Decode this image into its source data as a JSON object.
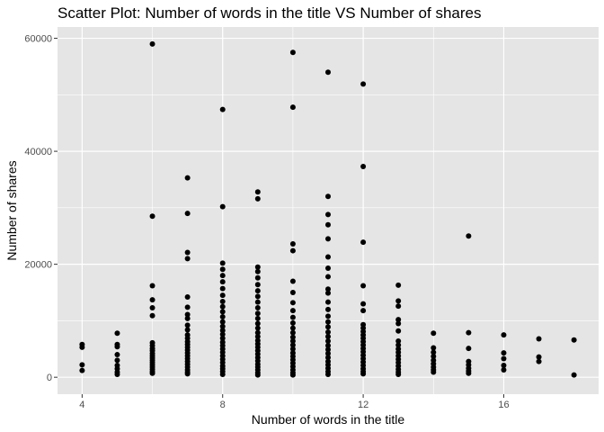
{
  "chart_data": {
    "type": "scatter",
    "title": "Scatter Plot: Number of words in the title VS Number of shares",
    "xlabel": "Number of words in the title",
    "ylabel": "Number of shares",
    "xlim": [
      3.3,
      18.7
    ],
    "ylim": [
      -3000,
      62000
    ],
    "x_ticks": [
      4,
      8,
      12,
      16
    ],
    "x_tick_labels": [
      "4",
      "8",
      "12",
      "16"
    ],
    "y_ticks": [
      0,
      20000,
      40000,
      60000
    ],
    "y_tick_labels": [
      "0",
      "20000",
      "40000",
      "60000"
    ],
    "grid": true,
    "panel_background": "#e5e5e5",
    "grid_color": "#ffffff",
    "point_color": "#000000",
    "points": [
      {
        "x": 4,
        "y": 5800
      },
      {
        "x": 4,
        "y": 5300
      },
      {
        "x": 4,
        "y": 2200
      },
      {
        "x": 4,
        "y": 1200
      },
      {
        "x": 5,
        "y": 7800
      },
      {
        "x": 5,
        "y": 5800
      },
      {
        "x": 5,
        "y": 5400
      },
      {
        "x": 5,
        "y": 4000
      },
      {
        "x": 5,
        "y": 3000
      },
      {
        "x": 5,
        "y": 2100
      },
      {
        "x": 5,
        "y": 1500
      },
      {
        "x": 5,
        "y": 900
      },
      {
        "x": 5,
        "y": 500
      },
      {
        "x": 6,
        "y": 59000
      },
      {
        "x": 6,
        "y": 28500
      },
      {
        "x": 6,
        "y": 16200
      },
      {
        "x": 6,
        "y": 13700
      },
      {
        "x": 6,
        "y": 12300
      },
      {
        "x": 6,
        "y": 10900
      },
      {
        "x": 6,
        "y": 6100
      },
      {
        "x": 6,
        "y": 5600
      },
      {
        "x": 6,
        "y": 5100
      },
      {
        "x": 6,
        "y": 4700
      },
      {
        "x": 6,
        "y": 4200
      },
      {
        "x": 6,
        "y": 3800
      },
      {
        "x": 6,
        "y": 3400
      },
      {
        "x": 6,
        "y": 3000
      },
      {
        "x": 6,
        "y": 2600
      },
      {
        "x": 6,
        "y": 2200
      },
      {
        "x": 6,
        "y": 1800
      },
      {
        "x": 6,
        "y": 1400
      },
      {
        "x": 6,
        "y": 1000
      },
      {
        "x": 6,
        "y": 700
      },
      {
        "x": 7,
        "y": 35300
      },
      {
        "x": 7,
        "y": 29000
      },
      {
        "x": 7,
        "y": 22100
      },
      {
        "x": 7,
        "y": 21000
      },
      {
        "x": 7,
        "y": 14200
      },
      {
        "x": 7,
        "y": 12400
      },
      {
        "x": 7,
        "y": 11100
      },
      {
        "x": 7,
        "y": 10400
      },
      {
        "x": 7,
        "y": 9200
      },
      {
        "x": 7,
        "y": 8400
      },
      {
        "x": 7,
        "y": 7500
      },
      {
        "x": 7,
        "y": 6900
      },
      {
        "x": 7,
        "y": 6300
      },
      {
        "x": 7,
        "y": 5800
      },
      {
        "x": 7,
        "y": 5300
      },
      {
        "x": 7,
        "y": 4800
      },
      {
        "x": 7,
        "y": 4300
      },
      {
        "x": 7,
        "y": 3800
      },
      {
        "x": 7,
        "y": 3300
      },
      {
        "x": 7,
        "y": 2800
      },
      {
        "x": 7,
        "y": 2300
      },
      {
        "x": 7,
        "y": 1800
      },
      {
        "x": 7,
        "y": 1300
      },
      {
        "x": 7,
        "y": 900
      },
      {
        "x": 7,
        "y": 600
      },
      {
        "x": 8,
        "y": 47400
      },
      {
        "x": 8,
        "y": 30200
      },
      {
        "x": 8,
        "y": 20200
      },
      {
        "x": 8,
        "y": 19100
      },
      {
        "x": 8,
        "y": 18000
      },
      {
        "x": 8,
        "y": 16900
      },
      {
        "x": 8,
        "y": 15700
      },
      {
        "x": 8,
        "y": 14500
      },
      {
        "x": 8,
        "y": 13400
      },
      {
        "x": 8,
        "y": 12500
      },
      {
        "x": 8,
        "y": 11600
      },
      {
        "x": 8,
        "y": 10700
      },
      {
        "x": 8,
        "y": 9800
      },
      {
        "x": 8,
        "y": 9000
      },
      {
        "x": 8,
        "y": 8300
      },
      {
        "x": 8,
        "y": 7600
      },
      {
        "x": 8,
        "y": 6900
      },
      {
        "x": 8,
        "y": 6200
      },
      {
        "x": 8,
        "y": 5600
      },
      {
        "x": 8,
        "y": 5000
      },
      {
        "x": 8,
        "y": 4400
      },
      {
        "x": 8,
        "y": 3800
      },
      {
        "x": 8,
        "y": 3200
      },
      {
        "x": 8,
        "y": 2600
      },
      {
        "x": 8,
        "y": 2000
      },
      {
        "x": 8,
        "y": 1500
      },
      {
        "x": 8,
        "y": 1000
      },
      {
        "x": 8,
        "y": 500
      },
      {
        "x": 9,
        "y": 32800
      },
      {
        "x": 9,
        "y": 31600
      },
      {
        "x": 9,
        "y": 19500
      },
      {
        "x": 9,
        "y": 18700
      },
      {
        "x": 9,
        "y": 17600
      },
      {
        "x": 9,
        "y": 16400
      },
      {
        "x": 9,
        "y": 15300
      },
      {
        "x": 9,
        "y": 14300
      },
      {
        "x": 9,
        "y": 13300
      },
      {
        "x": 9,
        "y": 12300
      },
      {
        "x": 9,
        "y": 11300
      },
      {
        "x": 9,
        "y": 10400
      },
      {
        "x": 9,
        "y": 9500
      },
      {
        "x": 9,
        "y": 8700
      },
      {
        "x": 9,
        "y": 7900
      },
      {
        "x": 9,
        "y": 7200
      },
      {
        "x": 9,
        "y": 6500
      },
      {
        "x": 9,
        "y": 5900
      },
      {
        "x": 9,
        "y": 5300
      },
      {
        "x": 9,
        "y": 4700
      },
      {
        "x": 9,
        "y": 4100
      },
      {
        "x": 9,
        "y": 3500
      },
      {
        "x": 9,
        "y": 2900
      },
      {
        "x": 9,
        "y": 2300
      },
      {
        "x": 9,
        "y": 1800
      },
      {
        "x": 9,
        "y": 1300
      },
      {
        "x": 9,
        "y": 800
      },
      {
        "x": 9,
        "y": 400
      },
      {
        "x": 10,
        "y": 57500
      },
      {
        "x": 10,
        "y": 47800
      },
      {
        "x": 10,
        "y": 23600
      },
      {
        "x": 10,
        "y": 22400
      },
      {
        "x": 10,
        "y": 17000
      },
      {
        "x": 10,
        "y": 15000
      },
      {
        "x": 10,
        "y": 13200
      },
      {
        "x": 10,
        "y": 11800
      },
      {
        "x": 10,
        "y": 10600
      },
      {
        "x": 10,
        "y": 9600
      },
      {
        "x": 10,
        "y": 8700
      },
      {
        "x": 10,
        "y": 7900
      },
      {
        "x": 10,
        "y": 7100
      },
      {
        "x": 10,
        "y": 6400
      },
      {
        "x": 10,
        "y": 5700
      },
      {
        "x": 10,
        "y": 5000
      },
      {
        "x": 10,
        "y": 4300
      },
      {
        "x": 10,
        "y": 3700
      },
      {
        "x": 10,
        "y": 3100
      },
      {
        "x": 10,
        "y": 2500
      },
      {
        "x": 10,
        "y": 1900
      },
      {
        "x": 10,
        "y": 1300
      },
      {
        "x": 10,
        "y": 800
      },
      {
        "x": 10,
        "y": 400
      },
      {
        "x": 11,
        "y": 54000
      },
      {
        "x": 11,
        "y": 32000
      },
      {
        "x": 11,
        "y": 28800
      },
      {
        "x": 11,
        "y": 27000
      },
      {
        "x": 11,
        "y": 24500
      },
      {
        "x": 11,
        "y": 21300
      },
      {
        "x": 11,
        "y": 19300
      },
      {
        "x": 11,
        "y": 17800
      },
      {
        "x": 11,
        "y": 15600
      },
      {
        "x": 11,
        "y": 14900
      },
      {
        "x": 11,
        "y": 13300
      },
      {
        "x": 11,
        "y": 12000
      },
      {
        "x": 11,
        "y": 10800
      },
      {
        "x": 11,
        "y": 9800
      },
      {
        "x": 11,
        "y": 8900
      },
      {
        "x": 11,
        "y": 8000
      },
      {
        "x": 11,
        "y": 7200
      },
      {
        "x": 11,
        "y": 6400
      },
      {
        "x": 11,
        "y": 5600
      },
      {
        "x": 11,
        "y": 4900
      },
      {
        "x": 11,
        "y": 4200
      },
      {
        "x": 11,
        "y": 3500
      },
      {
        "x": 11,
        "y": 2800
      },
      {
        "x": 11,
        "y": 2200
      },
      {
        "x": 11,
        "y": 1600
      },
      {
        "x": 11,
        "y": 1000
      },
      {
        "x": 11,
        "y": 500
      },
      {
        "x": 12,
        "y": 51900
      },
      {
        "x": 12,
        "y": 37300
      },
      {
        "x": 12,
        "y": 23900
      },
      {
        "x": 12,
        "y": 16200
      },
      {
        "x": 12,
        "y": 13000
      },
      {
        "x": 12,
        "y": 11800
      },
      {
        "x": 12,
        "y": 9300
      },
      {
        "x": 12,
        "y": 8700
      },
      {
        "x": 12,
        "y": 8100
      },
      {
        "x": 12,
        "y": 7500
      },
      {
        "x": 12,
        "y": 6900
      },
      {
        "x": 12,
        "y": 6300
      },
      {
        "x": 12,
        "y": 5700
      },
      {
        "x": 12,
        "y": 5100
      },
      {
        "x": 12,
        "y": 4500
      },
      {
        "x": 12,
        "y": 3900
      },
      {
        "x": 12,
        "y": 3300
      },
      {
        "x": 12,
        "y": 2700
      },
      {
        "x": 12,
        "y": 2100
      },
      {
        "x": 12,
        "y": 1500
      },
      {
        "x": 12,
        "y": 1000
      },
      {
        "x": 12,
        "y": 600
      },
      {
        "x": 13,
        "y": 16300
      },
      {
        "x": 13,
        "y": 13500
      },
      {
        "x": 13,
        "y": 12600
      },
      {
        "x": 13,
        "y": 10200
      },
      {
        "x": 13,
        "y": 9500
      },
      {
        "x": 13,
        "y": 8200
      },
      {
        "x": 13,
        "y": 6400
      },
      {
        "x": 13,
        "y": 5700
      },
      {
        "x": 13,
        "y": 5000
      },
      {
        "x": 13,
        "y": 4400
      },
      {
        "x": 13,
        "y": 3800
      },
      {
        "x": 13,
        "y": 3200
      },
      {
        "x": 13,
        "y": 2600
      },
      {
        "x": 13,
        "y": 2000
      },
      {
        "x": 13,
        "y": 1400
      },
      {
        "x": 13,
        "y": 900
      },
      {
        "x": 13,
        "y": 500
      },
      {
        "x": 14,
        "y": 7800
      },
      {
        "x": 14,
        "y": 5200
      },
      {
        "x": 14,
        "y": 4400
      },
      {
        "x": 14,
        "y": 3700
      },
      {
        "x": 14,
        "y": 3000
      },
      {
        "x": 14,
        "y": 2400
      },
      {
        "x": 14,
        "y": 1800
      },
      {
        "x": 14,
        "y": 1300
      },
      {
        "x": 14,
        "y": 900
      },
      {
        "x": 15,
        "y": 25000
      },
      {
        "x": 15,
        "y": 7900
      },
      {
        "x": 15,
        "y": 5100
      },
      {
        "x": 15,
        "y": 2800
      },
      {
        "x": 15,
        "y": 2200
      },
      {
        "x": 15,
        "y": 1600
      },
      {
        "x": 15,
        "y": 1100
      },
      {
        "x": 15,
        "y": 700
      },
      {
        "x": 16,
        "y": 7500
      },
      {
        "x": 16,
        "y": 4300
      },
      {
        "x": 16,
        "y": 3300
      },
      {
        "x": 16,
        "y": 2100
      },
      {
        "x": 16,
        "y": 1300
      },
      {
        "x": 17,
        "y": 6800
      },
      {
        "x": 17,
        "y": 3600
      },
      {
        "x": 17,
        "y": 2800
      },
      {
        "x": 18,
        "y": 6600
      },
      {
        "x": 18,
        "y": 400
      }
    ]
  }
}
